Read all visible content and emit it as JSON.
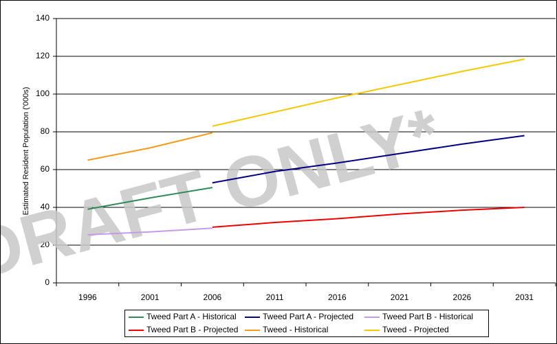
{
  "chart_data": {
    "type": "line",
    "y_label": "Estimated Resident Population ('000s)",
    "watermark": "DRAFT ONLY*",
    "categories": [
      "1996",
      "2001",
      "2006",
      "2011",
      "2016",
      "2021",
      "2026",
      "2031"
    ],
    "series": [
      {
        "name": "Tweed Part A - Historical",
        "color": "#2e8b57",
        "values": [
          39,
          45,
          50.5,
          null,
          null,
          null,
          null,
          null
        ]
      },
      {
        "name": "Tweed Part A - Projected",
        "color": "#000080",
        "values": [
          null,
          null,
          53,
          59,
          63.5,
          68.5,
          73.5,
          78
        ]
      },
      {
        "name": "Tweed Part B - Historical",
        "color": "#c39bea",
        "values": [
          25.5,
          27,
          29,
          null,
          null,
          null,
          null,
          null
        ]
      },
      {
        "name": "Tweed Part B - Projected",
        "color": "#ee0000",
        "values": [
          null,
          null,
          29.5,
          32,
          34,
          36.5,
          38.5,
          40
        ]
      },
      {
        "name": "Tweed - Historical",
        "color": "#f59a1b",
        "values": [
          65,
          71.5,
          79.5,
          null,
          null,
          null,
          null,
          null
        ]
      },
      {
        "name": "Tweed - Projected",
        "color": "#f5c800",
        "values": [
          null,
          null,
          83,
          90.5,
          98,
          105,
          112,
          118.5
        ]
      }
    ],
    "ylim": [
      0,
      140
    ],
    "yticks": [
      0,
      20,
      40,
      60,
      80,
      100,
      120,
      140
    ],
    "grid": true,
    "legend": "bottom"
  }
}
